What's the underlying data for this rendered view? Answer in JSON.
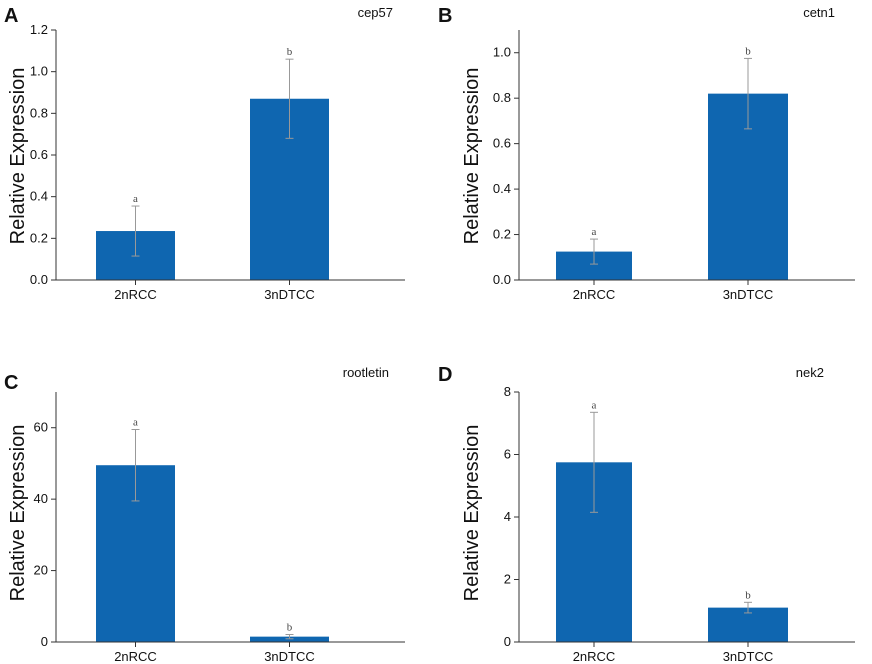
{
  "figure": {
    "accent_color": "#0f66b0",
    "text_color": "#111111"
  },
  "chart_data": [
    {
      "panel": "A",
      "type": "bar",
      "title": "cep57",
      "ylabel": "Relative Expression",
      "xlabel": "",
      "categories": [
        "2nRCC",
        "3nDTCC"
      ],
      "values": [
        0.235,
        0.87
      ],
      "errors": [
        0.12,
        0.19
      ],
      "labels": [
        "a",
        "b"
      ],
      "ylim": [
        0,
        1.2
      ],
      "yticks": [
        0.0,
        0.2,
        0.4,
        0.6,
        0.8,
        1.0,
        1.2
      ],
      "ytick_labels": [
        "0.0",
        "0.2",
        "0.4",
        "0.6",
        "0.8",
        "1.0",
        "1.2"
      ]
    },
    {
      "panel": "B",
      "type": "bar",
      "title": "cetn1",
      "ylabel": "Relative Expression",
      "xlabel": "",
      "categories": [
        "2nRCC",
        "3nDTCC"
      ],
      "values": [
        0.125,
        0.82
      ],
      "errors": [
        0.055,
        0.155
      ],
      "labels": [
        "a",
        "b"
      ],
      "ylim": [
        0,
        1.1
      ],
      "yticks": [
        0.0,
        0.2,
        0.4,
        0.6,
        0.8,
        1.0
      ],
      "ytick_labels": [
        "0.0",
        "0.2",
        "0.4",
        "0.6",
        "0.8",
        "1.0"
      ]
    },
    {
      "panel": "C",
      "type": "bar",
      "title": "rootletin",
      "ylabel": "Relative Expression",
      "xlabel": "",
      "categories": [
        "2nRCC",
        "3nDTCC"
      ],
      "values": [
        49.5,
        1.5
      ],
      "errors": [
        10,
        0.6
      ],
      "labels": [
        "a",
        "b"
      ],
      "ylim": [
        0,
        70
      ],
      "yticks": [
        0,
        20,
        40,
        60
      ],
      "ytick_labels": [
        "0",
        "20",
        "40",
        "60"
      ]
    },
    {
      "panel": "D",
      "type": "bar",
      "title": "nek2",
      "ylabel": "Relative Expression",
      "xlabel": "",
      "categories": [
        "2nRCC",
        "3nDTCC"
      ],
      "values": [
        5.75,
        1.1
      ],
      "errors": [
        1.6,
        0.17
      ],
      "labels": [
        "a",
        "b"
      ],
      "ylim": [
        0,
        8
      ],
      "yticks": [
        0,
        2,
        4,
        6,
        8
      ],
      "ytick_labels": [
        "0",
        "2",
        "4",
        "6",
        "8"
      ]
    }
  ]
}
